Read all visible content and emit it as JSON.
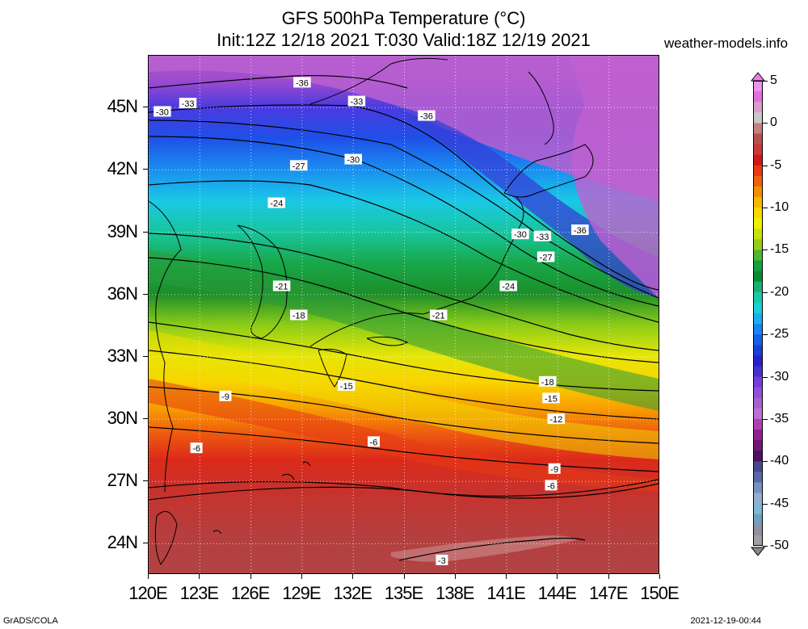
{
  "title": {
    "line1": "GFS 500hPa Temperature (°C)",
    "line2": "Init:12Z 12/18 2021 T:030 Valid:18Z 12/19 2021",
    "site": "weather-models.info"
  },
  "map": {
    "projection": "lat-lon",
    "lon_range": [
      120,
      150
    ],
    "lat_range": [
      22.5,
      47.5
    ],
    "lat_ticks": [
      "45N",
      "42N",
      "39N",
      "36N",
      "33N",
      "30N",
      "27N",
      "24N"
    ],
    "lat_values": [
      45,
      42,
      39,
      36,
      33,
      30,
      27,
      24
    ],
    "lon_ticks": [
      "120E",
      "123E",
      "126E",
      "129E",
      "132E",
      "135E",
      "138E",
      "141E",
      "144E",
      "147E",
      "150E"
    ],
    "lon_values": [
      120,
      123,
      126,
      129,
      132,
      135,
      138,
      141,
      144,
      147,
      150
    ],
    "grid": "dotted",
    "contour_labels": [
      {
        "text": "-36",
        "lon": 129.0,
        "lat": 46.2
      },
      {
        "text": "-33",
        "lon": 122.3,
        "lat": 45.2
      },
      {
        "text": "-30",
        "lon": 120.8,
        "lat": 44.8
      },
      {
        "text": "-33",
        "lon": 132.2,
        "lat": 45.3
      },
      {
        "text": "-36",
        "lon": 136.3,
        "lat": 44.6
      },
      {
        "text": "-30",
        "lon": 132.0,
        "lat": 42.5
      },
      {
        "text": "-27",
        "lon": 128.8,
        "lat": 42.2
      },
      {
        "text": "-24",
        "lon": 127.5,
        "lat": 40.4
      },
      {
        "text": "-21",
        "lon": 127.8,
        "lat": 36.4
      },
      {
        "text": "-18",
        "lon": 128.8,
        "lat": 35.0
      },
      {
        "text": "-15",
        "lon": 131.6,
        "lat": 31.6
      },
      {
        "text": "-9",
        "lon": 124.5,
        "lat": 31.1
      },
      {
        "text": "-6",
        "lon": 122.8,
        "lat": 28.6
      },
      {
        "text": "-6",
        "lon": 133.2,
        "lat": 28.9
      },
      {
        "text": "-3",
        "lon": 137.2,
        "lat": 23.2
      },
      {
        "text": "-36",
        "lon": 145.3,
        "lat": 39.1
      },
      {
        "text": "-30",
        "lon": 141.8,
        "lat": 38.9
      },
      {
        "text": "-33",
        "lon": 143.1,
        "lat": 38.8
      },
      {
        "text": "-27",
        "lon": 143.3,
        "lat": 37.8
      },
      {
        "text": "-24",
        "lon": 141.1,
        "lat": 36.4
      },
      {
        "text": "-21",
        "lon": 137.0,
        "lat": 35.0
      },
      {
        "text": "-18",
        "lon": 143.4,
        "lat": 31.8
      },
      {
        "text": "-15",
        "lon": 143.6,
        "lat": 31.0
      },
      {
        "text": "-12",
        "lon": 143.9,
        "lat": 30.0
      },
      {
        "text": "-9",
        "lon": 143.8,
        "lat": 27.6
      },
      {
        "text": "-6",
        "lon": 143.6,
        "lat": 26.8
      }
    ]
  },
  "colorbar": {
    "labels": [
      "5",
      "0",
      "-5",
      "-10",
      "-15",
      "-20",
      "-25",
      "-30",
      "-35",
      "-40",
      "-45",
      "-50"
    ],
    "values": [
      5,
      0,
      -5,
      -10,
      -15,
      -20,
      -25,
      -30,
      -35,
      -40,
      -45,
      -50
    ],
    "units": "°C"
  },
  "footer": {
    "left": "GrADS/COLA",
    "right": "2021-12-19-00:44"
  }
}
